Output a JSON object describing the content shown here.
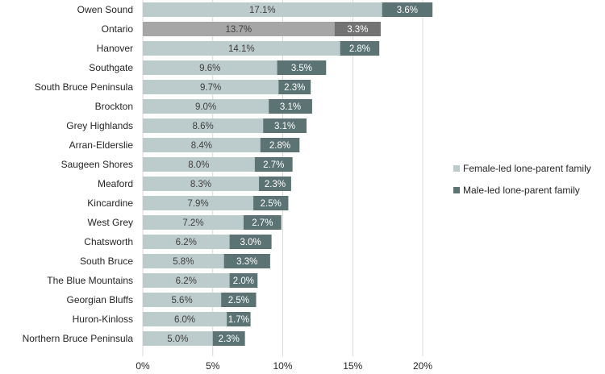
{
  "chart_data": {
    "type": "bar",
    "orientation": "horizontal",
    "stacked": true,
    "title": "",
    "xlabel": "",
    "ylabel": "",
    "xlim": [
      0,
      20
    ],
    "x_ticks": [
      "0%",
      "5%",
      "10%",
      "15%",
      "20%"
    ],
    "x_tick_values": [
      0,
      5,
      10,
      15,
      20
    ],
    "categories": [
      "Owen Sound",
      "Ontario",
      "Hanover",
      "Southgate",
      "South Bruce Peninsula",
      "Brockton",
      "Grey Highlands",
      "Arran-Elderslie",
      "Saugeen Shores",
      "Meaford",
      "Kincardine",
      "West Grey",
      "Chatsworth",
      "South Bruce",
      "The Blue Mountains",
      "Georgian Bluffs",
      "Huron-Kinloss",
      "Northern Bruce Peninsula"
    ],
    "highlight_category": "Ontario",
    "series": [
      {
        "name": "Female-led lone-parent family",
        "color": "#bccbcb",
        "highlight_color": "#a6a6a6",
        "label_color": "#404040",
        "values": [
          17.1,
          13.7,
          14.1,
          9.6,
          9.7,
          9.0,
          8.6,
          8.4,
          8.0,
          8.3,
          7.9,
          7.2,
          6.2,
          5.8,
          6.2,
          5.6,
          6.0,
          5.0
        ],
        "labels": [
          "17.1%",
          "13.7%",
          "14.1%",
          "9.6%",
          "9.7%",
          "9.0%",
          "8.6%",
          "8.4%",
          "8.0%",
          "8.3%",
          "7.9%",
          "7.2%",
          "6.2%",
          "5.8%",
          "6.2%",
          "5.6%",
          "6.0%",
          "5.0%"
        ]
      },
      {
        "name": "Male-led lone-parent family",
        "color": "#5b7373",
        "highlight_color": "#737373",
        "label_color": "#ffffff",
        "values": [
          3.6,
          3.3,
          2.8,
          3.5,
          2.3,
          3.1,
          3.1,
          2.8,
          2.7,
          2.3,
          2.5,
          2.7,
          3.0,
          3.3,
          2.0,
          2.5,
          1.7,
          2.3
        ],
        "labels": [
          "3.6%",
          "3.3%",
          "2.8%",
          "3.5%",
          "2.3%",
          "3.1%",
          "3.1%",
          "2.8%",
          "2.7%",
          "2.3%",
          "2.5%",
          "2.7%",
          "3.0%",
          "3.3%",
          "2.0%",
          "2.5%",
          "1.7%",
          "2.3%"
        ]
      }
    ],
    "legend": {
      "placement": "right",
      "entries": [
        "Female-led lone-parent family",
        "Male-led lone-parent family"
      ]
    },
    "grid": true,
    "grid_color": "#d9d9d9"
  }
}
